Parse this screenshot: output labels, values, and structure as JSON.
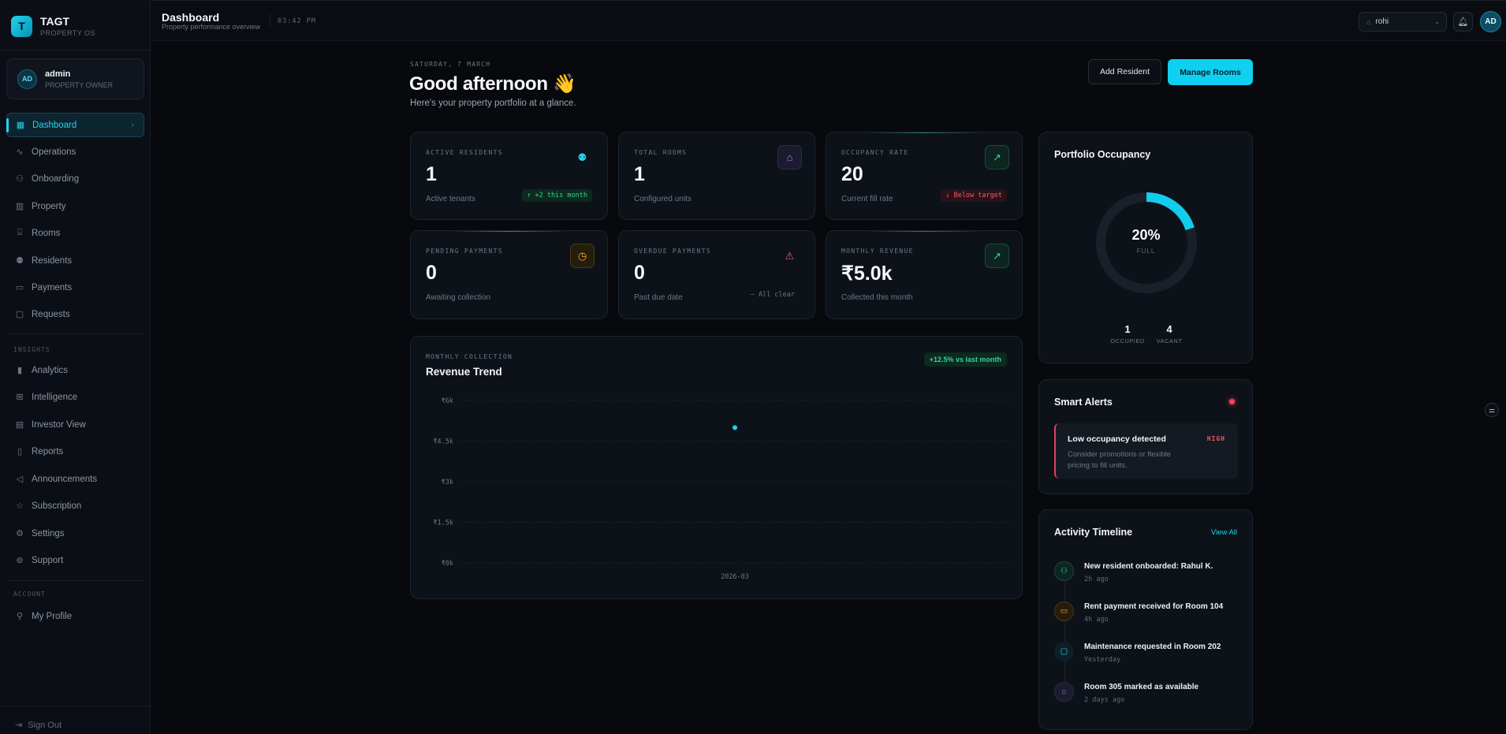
{
  "brand": {
    "logo_letter": "T",
    "name": "TAGT",
    "subtitle": "PROPERTY OS"
  },
  "user": {
    "initials": "AD",
    "name": "admin",
    "role": "PROPERTY OWNER"
  },
  "nav": {
    "main": [
      {
        "label": "Dashboard",
        "icon": "grid-icon",
        "active": true
      },
      {
        "label": "Operations",
        "icon": "activity-icon"
      },
      {
        "label": "Onboarding",
        "icon": "user-plus-icon"
      },
      {
        "label": "Property",
        "icon": "building-icon"
      },
      {
        "label": "Rooms",
        "icon": "bed-icon"
      },
      {
        "label": "Residents",
        "icon": "users-icon"
      },
      {
        "label": "Payments",
        "icon": "card-icon"
      },
      {
        "label": "Requests",
        "icon": "message-icon"
      }
    ],
    "insights_label": "INSIGHTS",
    "insights": [
      {
        "label": "Analytics",
        "icon": "bar-chart-icon"
      },
      {
        "label": "Intelligence",
        "icon": "cpu-icon"
      },
      {
        "label": "Investor View",
        "icon": "briefcase-icon"
      },
      {
        "label": "Reports",
        "icon": "file-icon"
      },
      {
        "label": "Announcements",
        "icon": "megaphone-icon"
      },
      {
        "label": "Subscription",
        "icon": "star-icon"
      },
      {
        "label": "Settings",
        "icon": "gear-icon"
      },
      {
        "label": "Support",
        "icon": "lifebuoy-icon"
      }
    ],
    "account_label": "ACCOUNT",
    "account": [
      {
        "label": "My Profile",
        "icon": "user-icon"
      }
    ],
    "signout": "Sign Out"
  },
  "header": {
    "title": "Dashboard",
    "subtitle": "Property performance overview",
    "time": "03:42 PM",
    "property": "rohi",
    "avatar": "AD"
  },
  "main": {
    "date": "SATURDAY, 7 MARCH",
    "greeting": "Good afternoon 👋",
    "greeting_sub": "Here's your property portfolio at a glance.",
    "add_resident": "Add Resident",
    "manage_rooms": "Manage Rooms"
  },
  "stats": [
    {
      "label": "ACTIVE RESIDENTS",
      "value": "1",
      "caption": "Active tenants",
      "badge": "↑ +2 this month",
      "badge_type": "green",
      "icon": "users-icon",
      "icon_color": "#22d3ee"
    },
    {
      "label": "TOTAL ROOMS",
      "value": "1",
      "caption": "Configured units",
      "badge": "",
      "badge_type": "none",
      "icon": "home-icon",
      "icon_color": "#a78bfa"
    },
    {
      "label": "OCCUPANCY RATE",
      "value": "20",
      "caption": "Current fill rate",
      "badge": "↓ Below target",
      "badge_type": "red",
      "icon": "trend-up-icon",
      "icon_color": "#34d399"
    },
    {
      "label": "PENDING PAYMENTS",
      "value": "0",
      "caption": "Awaiting collection",
      "badge": "",
      "badge_type": "none",
      "icon": "clock-icon",
      "icon_color": "#f5b324"
    },
    {
      "label": "OVERDUE PAYMENTS",
      "value": "0",
      "caption": "Past due date",
      "badge": "— All clear",
      "badge_type": "muted",
      "icon": "alert-triangle-icon",
      "icon_color": "#f05a6a"
    },
    {
      "label": "MONTHLY REVENUE",
      "value": "₹5.0k",
      "caption": "Collected this month",
      "badge": "",
      "badge_type": "none",
      "icon": "trend-up-icon",
      "icon_color": "#34d399"
    }
  ],
  "revenue": {
    "label": "MONTHLY COLLECTION",
    "title": "Revenue Trend",
    "badge": "+12.5% vs last month"
  },
  "chart_data": {
    "type": "scatter",
    "title": "Revenue Trend",
    "x": [
      "2026-03"
    ],
    "values": [
      5000
    ],
    "ylim": [
      0,
      6000
    ],
    "yticks": [
      0,
      1500,
      3000,
      4500,
      6000
    ],
    "ytick_labels": [
      "₹0k",
      "₹1.5k",
      "₹3k",
      "₹4.5k",
      "₹6k"
    ],
    "xtick_labels": [
      "2026-03"
    ],
    "grid": true,
    "color": "#22d3ee"
  },
  "occupancy": {
    "title": "Portfolio Occupancy",
    "percent": 20,
    "percent_label": "20%",
    "full_label": "FULL",
    "occupied": "1",
    "occupied_label": "OCCUPIED",
    "vacant": "4",
    "vacant_label": "VACANT"
  },
  "alerts": {
    "title": "Smart Alerts",
    "items": [
      {
        "title": "Low occupancy detected",
        "severity": "HIGH",
        "desc": "Consider promotions or flexible pricing to fill units."
      }
    ]
  },
  "timeline": {
    "title": "Activity Timeline",
    "view_all": "View All",
    "items": [
      {
        "text": "New resident onboarded: Rahul K.",
        "time": "2h ago",
        "icon": "user-plus-icon",
        "color": "#34d399"
      },
      {
        "text": "Rent payment received for Room 104",
        "time": "4h ago",
        "icon": "card-icon",
        "color": "#f5b324"
      },
      {
        "text": "Maintenance requested in Room 202",
        "time": "Yesterday",
        "icon": "message-icon",
        "color": "#22d3ee"
      },
      {
        "text": "Room 305 marked as available",
        "time": "2 days ago",
        "icon": "home-icon",
        "color": "#a78bfa"
      }
    ]
  }
}
